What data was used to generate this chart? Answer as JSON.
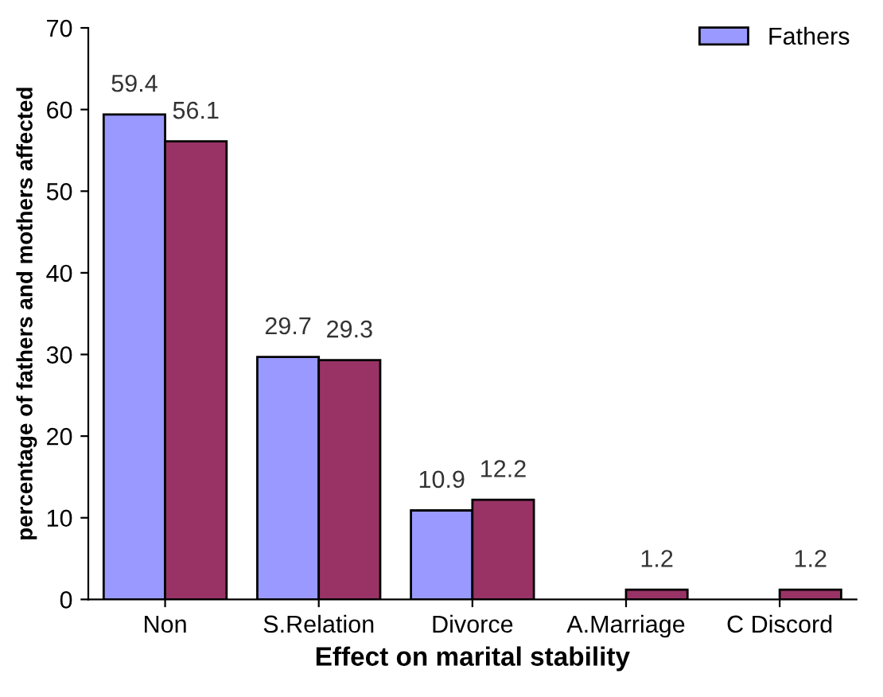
{
  "chart_data": {
    "type": "bar",
    "xlabel": "Effect on marital stability",
    "ylabel": "percentage of fathers and mothers affected",
    "categories": [
      "Non",
      "S.Relation",
      "Divorce",
      "A.Marriage",
      "C Discord"
    ],
    "series": [
      {
        "name": "Fathers",
        "color": "#9999ff",
        "values": [
          59.4,
          29.7,
          10.9,
          null,
          null
        ],
        "value_labels": [
          "59.4",
          "29.7",
          "10.9",
          null,
          null
        ]
      },
      {
        "color": "#993366",
        "values": [
          56.1,
          29.3,
          12.2,
          1.2,
          1.2
        ],
        "value_labels": [
          "56.1",
          "29.3",
          "12.2",
          "1.2",
          "1.2"
        ]
      }
    ],
    "ylim": [
      0,
      70
    ],
    "yticks": [
      0,
      10,
      20,
      30,
      40,
      50,
      60,
      70
    ],
    "grid": false,
    "legend": "top right"
  }
}
